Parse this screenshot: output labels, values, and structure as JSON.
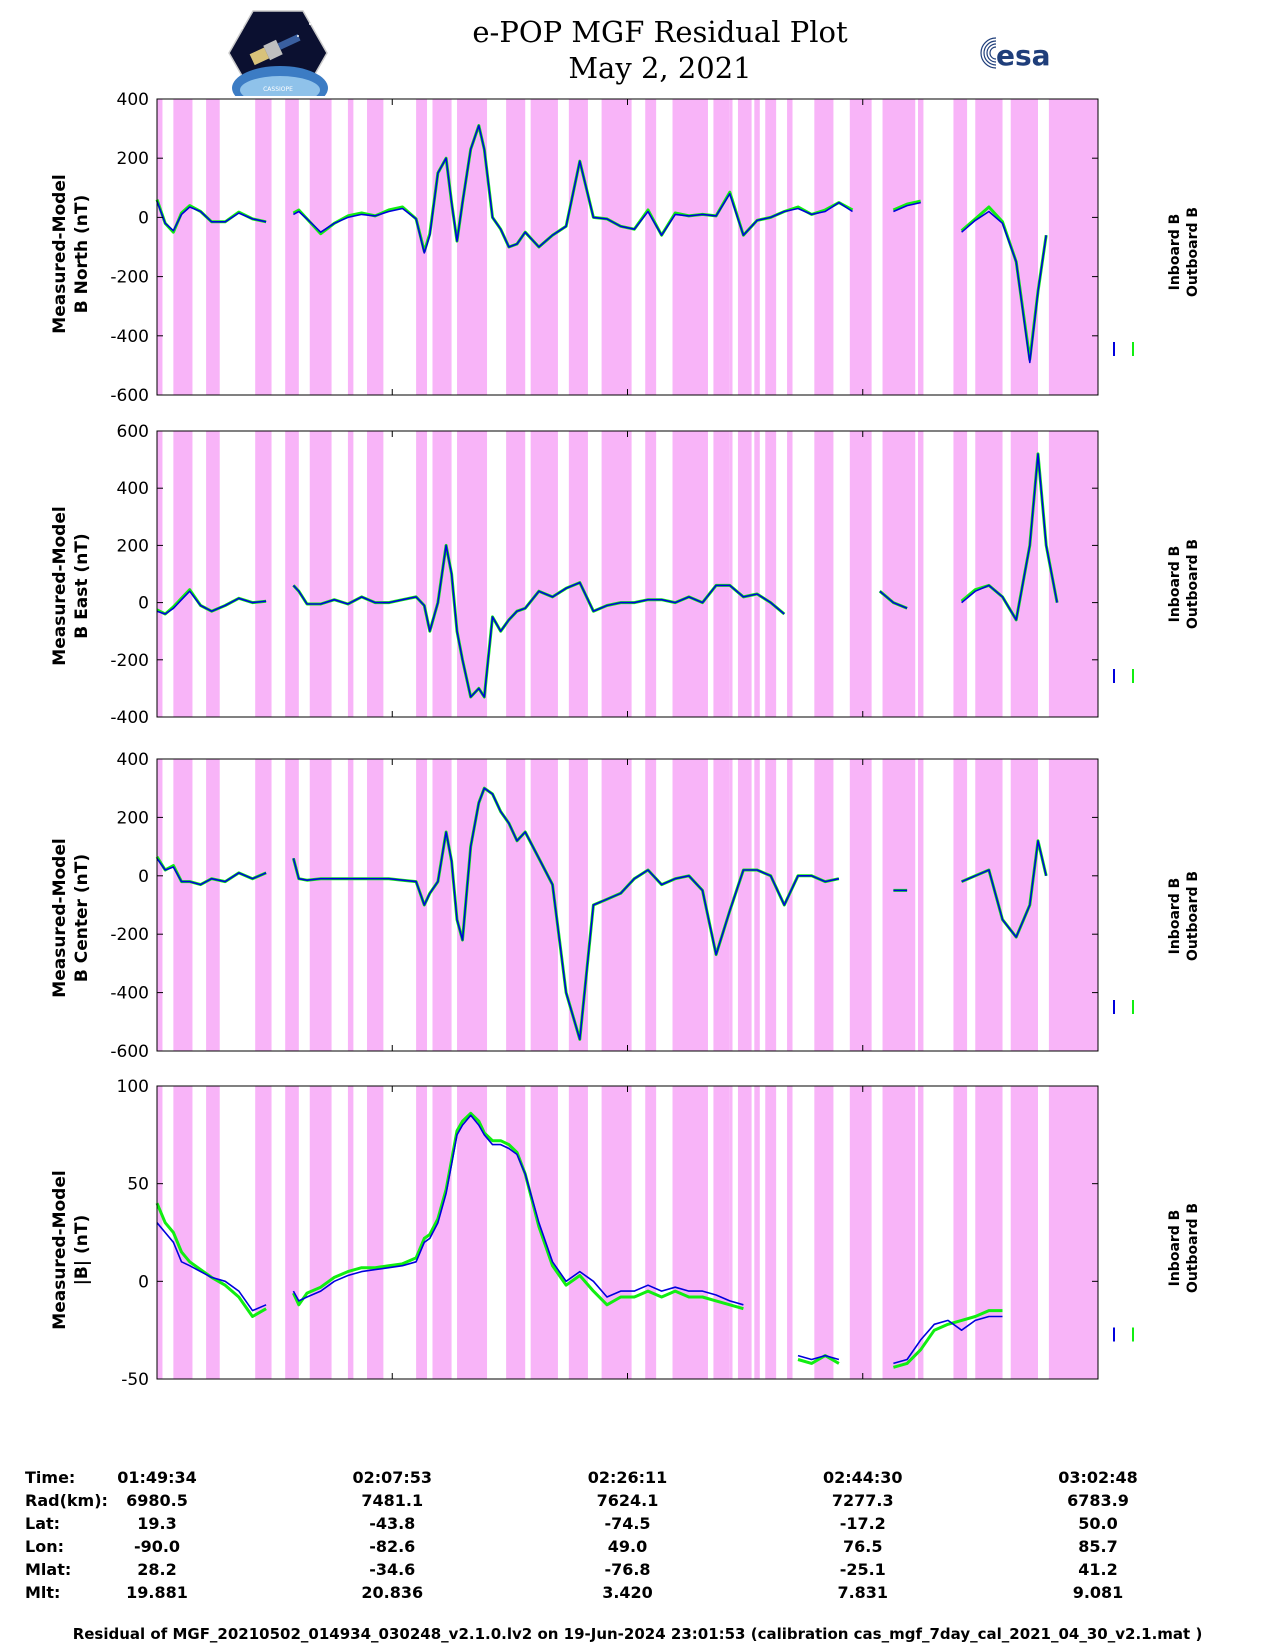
{
  "header": {
    "title_line1": "e-POP MGF Residual Plot",
    "title_line2": "May 2, 2021",
    "logo_left_text": "CASSIOPE",
    "logo_right_text": "esa"
  },
  "colors": {
    "inboard": "#0000dd",
    "outboard": "#11ee11",
    "shading": "#f8b4f8"
  },
  "chart_data": [
    {
      "type": "line",
      "ylabel_line1": "Measured-Model",
      "ylabel_line2": "B North (nT)",
      "ylim": [
        -600,
        400
      ],
      "yticks": [
        "400",
        "200",
        "0",
        "-200",
        "-400",
        "-600"
      ],
      "legend": [
        "Inboard B",
        "Outboard B"
      ],
      "x": [
        0,
        3,
        6,
        9,
        12,
        16,
        20,
        25,
        30,
        35,
        40,
        45,
        50,
        52,
        55,
        60,
        65,
        70,
        75,
        80,
        85,
        90,
        95,
        98,
        100,
        103,
        106,
        108,
        110,
        112,
        115,
        118,
        120,
        123,
        126,
        129,
        132,
        135,
        140,
        145,
        150,
        155,
        160,
        165,
        170,
        175,
        180,
        185,
        190,
        195,
        200,
        205,
        210,
        215,
        220,
        225,
        230,
        235,
        240,
        245,
        250,
        255,
        260,
        265,
        270,
        275,
        280,
        285,
        290,
        295,
        300,
        305,
        310,
        315,
        320,
        323,
        326,
        330,
        335,
        340,
        345
      ],
      "series": [
        {
          "name": "Inboard B",
          "values": [
            55,
            -20,
            -45,
            10,
            35,
            20,
            -15,
            -15,
            15,
            -5,
            -15,
            null,
            10,
            20,
            -5,
            -50,
            -20,
            0,
            10,
            5,
            20,
            30,
            -5,
            -120,
            -60,
            150,
            200,
            50,
            -80,
            50,
            230,
            310,
            230,
            0,
            -40,
            -100,
            -90,
            -50,
            -100,
            -60,
            -30,
            190,
            0,
            -5,
            -30,
            -40,
            20,
            -60,
            10,
            5,
            10,
            5,
            80,
            -60,
            -10,
            0,
            20,
            30,
            10,
            20,
            50,
            20,
            null,
            null,
            20,
            40,
            50,
            null,
            null,
            -50,
            -10,
            20,
            -20,
            -150,
            -490,
            -250,
            -60,
            null,
            null,
            null,
            null
          ]
        },
        {
          "name": "Outboard B",
          "values": [
            60,
            -20,
            -50,
            15,
            40,
            20,
            -15,
            -15,
            18,
            -5,
            -15,
            null,
            15,
            25,
            -5,
            -55,
            -20,
            5,
            15,
            5,
            25,
            35,
            -5,
            -115,
            -55,
            150,
            200,
            50,
            -80,
            50,
            230,
            310,
            230,
            0,
            -40,
            -100,
            -90,
            -50,
            -100,
            -60,
            -30,
            190,
            0,
            -5,
            -30,
            -40,
            25,
            -60,
            15,
            5,
            10,
            5,
            85,
            -60,
            -10,
            0,
            20,
            35,
            10,
            25,
            50,
            25,
            null,
            null,
            25,
            45,
            55,
            null,
            null,
            -45,
            -5,
            35,
            -15,
            -150,
            -480,
            -250,
            -60,
            null,
            null,
            null,
            null
          ]
        }
      ]
    },
    {
      "type": "line",
      "ylabel_line1": "Measured-Model",
      "ylabel_line2": "B East (nT)",
      "ylim": [
        -400,
        600
      ],
      "yticks": [
        "600",
        "400",
        "200",
        "0",
        "-200",
        "-400"
      ],
      "legend": [
        "Inboard B",
        "Outboard B"
      ],
      "x": [
        0,
        3,
        6,
        9,
        12,
        16,
        20,
        25,
        30,
        35,
        40,
        45,
        50,
        52,
        55,
        60,
        65,
        70,
        75,
        80,
        85,
        90,
        95,
        98,
        100,
        103,
        106,
        108,
        110,
        112,
        115,
        118,
        120,
        123,
        126,
        129,
        132,
        135,
        140,
        145,
        150,
        155,
        160,
        165,
        170,
        175,
        180,
        185,
        190,
        195,
        200,
        205,
        210,
        215,
        220,
        225,
        230,
        235,
        240,
        245,
        250,
        255,
        260,
        265,
        270,
        275,
        280,
        285,
        290,
        295,
        300,
        305,
        310,
        315,
        320,
        323,
        326,
        330,
        335,
        340,
        345
      ],
      "series": [
        {
          "name": "Inboard B",
          "values": [
            -30,
            -40,
            -20,
            10,
            40,
            -10,
            -30,
            -10,
            15,
            0,
            5,
            null,
            60,
            40,
            -5,
            -5,
            10,
            -5,
            20,
            0,
            0,
            10,
            20,
            -10,
            -100,
            0,
            200,
            100,
            -100,
            -200,
            -330,
            -300,
            -330,
            -50,
            -100,
            -60,
            -30,
            -20,
            40,
            20,
            50,
            70,
            -30,
            -10,
            0,
            0,
            10,
            10,
            0,
            20,
            0,
            60,
            60,
            20,
            30,
            0,
            -40,
            null,
            null,
            null,
            null,
            null,
            null,
            40,
            0,
            -20,
            null,
            null,
            null,
            0,
            40,
            60,
            20,
            -60,
            200,
            520,
            200,
            0,
            null,
            null,
            null
          ]
        },
        {
          "name": "Outboard B",
          "values": [
            -25,
            -40,
            -15,
            15,
            45,
            -10,
            -30,
            -10,
            15,
            0,
            5,
            null,
            60,
            40,
            -5,
            -5,
            10,
            -5,
            20,
            0,
            0,
            10,
            20,
            -10,
            -100,
            0,
            200,
            100,
            -100,
            -200,
            -330,
            -300,
            -330,
            -50,
            -100,
            -60,
            -30,
            -20,
            40,
            20,
            50,
            70,
            -30,
            -10,
            0,
            0,
            10,
            10,
            0,
            20,
            0,
            60,
            60,
            20,
            30,
            0,
            -40,
            null,
            null,
            null,
            null,
            null,
            null,
            40,
            0,
            -20,
            null,
            null,
            null,
            5,
            45,
            60,
            20,
            -60,
            200,
            520,
            200,
            0,
            null,
            null,
            null
          ]
        }
      ]
    },
    {
      "type": "line",
      "ylabel_line1": "Measured-Model",
      "ylabel_line2": "B Center (nT)",
      "ylim": [
        -600,
        400
      ],
      "yticks": [
        "400",
        "200",
        "0",
        "-200",
        "-400",
        "-600"
      ],
      "legend": [
        "Inboard B",
        "Outboard B"
      ],
      "x": [
        0,
        3,
        6,
        9,
        12,
        16,
        20,
        25,
        30,
        35,
        40,
        45,
        50,
        52,
        55,
        60,
        65,
        70,
        75,
        80,
        85,
        90,
        95,
        98,
        100,
        103,
        106,
        108,
        110,
        112,
        115,
        118,
        120,
        123,
        126,
        129,
        132,
        135,
        140,
        145,
        150,
        155,
        160,
        165,
        170,
        175,
        180,
        185,
        190,
        195,
        200,
        205,
        210,
        215,
        220,
        225,
        230,
        235,
        240,
        245,
        250,
        255,
        260,
        265,
        270,
        275,
        280,
        285,
        290,
        295,
        300,
        305,
        310,
        315,
        320,
        323,
        326,
        330,
        335,
        340,
        345
      ],
      "series": [
        {
          "name": "Inboard B",
          "values": [
            60,
            20,
            30,
            -20,
            -20,
            -30,
            -10,
            -20,
            10,
            -10,
            10,
            null,
            60,
            -10,
            -15,
            -10,
            -10,
            -10,
            -10,
            -10,
            -10,
            -15,
            -20,
            -100,
            -60,
            -20,
            150,
            50,
            -150,
            -220,
            100,
            250,
            300,
            280,
            220,
            180,
            120,
            150,
            60,
            -30,
            -400,
            -560,
            -100,
            -80,
            -60,
            -10,
            20,
            -30,
            -10,
            0,
            -50,
            -270,
            -120,
            20,
            20,
            0,
            -100,
            0,
            0,
            -20,
            -10,
            null,
            null,
            null,
            -50,
            -50,
            null,
            null,
            null,
            -20,
            0,
            20,
            -150,
            -210,
            -100,
            120,
            0,
            null,
            null,
            null,
            null
          ]
        },
        {
          "name": "Outboard B",
          "values": [
            65,
            20,
            35,
            -20,
            -20,
            -30,
            -10,
            -20,
            10,
            -10,
            10,
            null,
            60,
            -10,
            -15,
            -10,
            -10,
            -10,
            -10,
            -10,
            -10,
            -15,
            -20,
            -100,
            -60,
            -20,
            150,
            50,
            -150,
            -220,
            100,
            250,
            300,
            280,
            220,
            180,
            120,
            150,
            60,
            -30,
            -400,
            -560,
            -100,
            -80,
            -60,
            -10,
            20,
            -30,
            -10,
            0,
            -50,
            -270,
            -120,
            20,
            20,
            0,
            -100,
            0,
            0,
            -20,
            -10,
            null,
            null,
            null,
            -50,
            -50,
            null,
            null,
            null,
            -20,
            0,
            20,
            -150,
            -210,
            -100,
            120,
            0,
            null,
            null,
            null,
            null
          ]
        }
      ]
    },
    {
      "type": "line",
      "ylabel_line1": "Measured-Model",
      "ylabel_line2": "|B| (nT)",
      "ylim": [
        -50,
        100
      ],
      "yticks": [
        "100",
        "50",
        "0",
        "-50"
      ],
      "legend": [
        "Inboard B",
        "Outboard B"
      ],
      "x": [
        0,
        3,
        6,
        9,
        12,
        16,
        20,
        25,
        30,
        35,
        40,
        45,
        50,
        52,
        55,
        60,
        65,
        70,
        75,
        80,
        85,
        90,
        95,
        98,
        100,
        103,
        106,
        108,
        110,
        112,
        115,
        118,
        120,
        123,
        126,
        129,
        132,
        135,
        140,
        145,
        150,
        155,
        160,
        165,
        170,
        175,
        180,
        185,
        190,
        195,
        200,
        205,
        210,
        215,
        220,
        225,
        230,
        235,
        240,
        245,
        250,
        255,
        260,
        265,
        270,
        275,
        280,
        285,
        290,
        295,
        300,
        305,
        310,
        315,
        320,
        323,
        326,
        330,
        335,
        340,
        345
      ],
      "series": [
        {
          "name": "Inboard B",
          "values": [
            30,
            25,
            20,
            10,
            8,
            5,
            2,
            0,
            -5,
            -15,
            -12,
            null,
            -5,
            -10,
            -8,
            -5,
            0,
            3,
            5,
            6,
            7,
            8,
            10,
            20,
            22,
            30,
            45,
            60,
            75,
            80,
            85,
            80,
            75,
            70,
            70,
            68,
            65,
            55,
            30,
            10,
            0,
            5,
            0,
            -8,
            -5,
            -5,
            -2,
            -5,
            -3,
            -5,
            -5,
            -7,
            -10,
            -12,
            null,
            null,
            null,
            -38,
            -40,
            -38,
            -40,
            null,
            null,
            null,
            -42,
            -40,
            -30,
            -22,
            -20,
            -25,
            -20,
            -18,
            -18,
            null,
            null,
            null,
            null,
            null,
            null,
            null,
            null
          ]
        },
        {
          "name": "Outboard B",
          "values": [
            40,
            30,
            25,
            15,
            10,
            6,
            2,
            -2,
            -8,
            -18,
            -14,
            null,
            -6,
            -12,
            -6,
            -3,
            2,
            5,
            7,
            7,
            8,
            9,
            12,
            22,
            24,
            32,
            47,
            62,
            77,
            82,
            86,
            82,
            76,
            72,
            72,
            70,
            66,
            55,
            28,
            8,
            -2,
            3,
            -5,
            -12,
            -8,
            -8,
            -5,
            -8,
            -5,
            -8,
            -8,
            -10,
            -12,
            -14,
            null,
            null,
            null,
            -40,
            -42,
            -38,
            -42,
            null,
            null,
            null,
            -44,
            -42,
            -35,
            -25,
            -22,
            -20,
            -18,
            -15,
            -15,
            null,
            null,
            null,
            null,
            null,
            null,
            null,
            null
          ]
        }
      ]
    }
  ],
  "shading_bands": [
    [
      0,
      2
    ],
    [
      6,
      13
    ],
    [
      18,
      23
    ],
    [
      36,
      42
    ],
    [
      47,
      52
    ],
    [
      56,
      64
    ],
    [
      70,
      72
    ],
    [
      77,
      83
    ],
    [
      95,
      99
    ],
    [
      101,
      108
    ],
    [
      110,
      121
    ],
    [
      128,
      135
    ],
    [
      137,
      147
    ],
    [
      151,
      158
    ],
    [
      163,
      174
    ],
    [
      179,
      183
    ],
    [
      189,
      202
    ],
    [
      204,
      210
    ],
    [
      210,
      211
    ],
    [
      213,
      218
    ],
    [
      219,
      221
    ],
    [
      223,
      227
    ],
    [
      231,
      233
    ],
    [
      241,
      248
    ],
    [
      254,
      262
    ],
    [
      266,
      278
    ],
    [
      279,
      281
    ],
    [
      292,
      297
    ],
    [
      300,
      310
    ],
    [
      313,
      323
    ],
    [
      327,
      345
    ]
  ],
  "x_axis": {
    "range": [
      0,
      345
    ],
    "tick_positions": [
      0,
      86.25,
      172.5,
      258.75,
      345
    ]
  },
  "info_table": {
    "labels": [
      "Time:",
      "Rad(km):",
      "Lat:",
      "Lon:",
      "Mlat:",
      "Mlt:"
    ],
    "columns": [
      [
        "01:49:34",
        "6980.5",
        "19.3",
        "-90.0",
        "28.2",
        "19.881"
      ],
      [
        "02:07:53",
        "7481.1",
        "-43.8",
        "-82.6",
        "-34.6",
        "20.836"
      ],
      [
        "02:26:11",
        "7624.1",
        "-74.5",
        "49.0",
        "-76.8",
        "3.420"
      ],
      [
        "02:44:30",
        "7277.3",
        "-17.2",
        "76.5",
        "-25.1",
        "7.831"
      ],
      [
        "03:02:48",
        "6783.9",
        "50.0",
        "85.7",
        "41.2",
        "9.081"
      ]
    ]
  },
  "footer": "Residual of MGF_20210502_014934_030248_v2.1.0.lv2 on 19-Jun-2024 23:01:53 (calibration cas_mgf_7day_cal_2021_04_30_v2.1.mat )"
}
